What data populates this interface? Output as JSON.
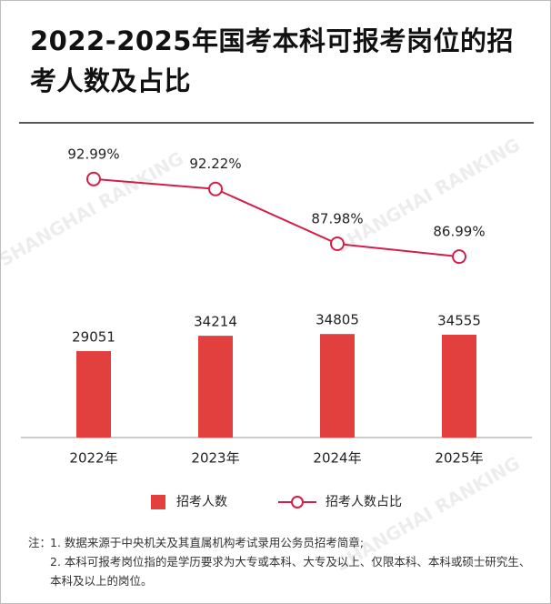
{
  "chart_data": {
    "type": "bar",
    "title": "2022-2025年国考本科可报考岗位的招考人数及占比",
    "categories": [
      "2022年",
      "2023年",
      "2024年",
      "2025年"
    ],
    "series": [
      {
        "name": "招考人数",
        "type": "bar",
        "color": "#e2403f",
        "values": [
          29051,
          34214,
          34805,
          34555
        ]
      },
      {
        "name": "招考人数占比",
        "type": "line",
        "axis": "y2",
        "color": "#d21f48",
        "values": [
          92.99,
          92.22,
          87.98,
          86.99
        ],
        "value_labels": [
          "92.99%",
          "92.22%",
          "87.98%",
          "86.99%"
        ]
      }
    ],
    "ylim": [
      0,
      100000
    ],
    "y2lim": [
      73,
      96
    ],
    "watermark": "SHANGHAI RANKING",
    "notes_prefix": "注：",
    "notes": [
      "1. 数据来源于中央机关及其直属机构考试录用公务员招考简章;",
      "2. 本科可报考岗位指的是学历要求为大专或本科、大专及以上、仅限本科、本科或硕士研究生、本科及以上的岗位。"
    ]
  }
}
